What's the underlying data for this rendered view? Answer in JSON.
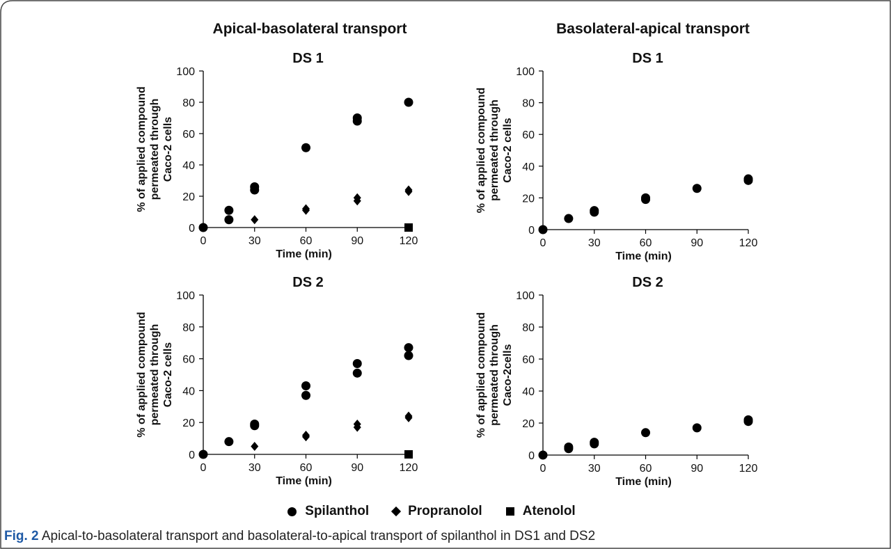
{
  "figure": {
    "column_titles": [
      "Apical-basolateral transport",
      "Basolateral-apical transport"
    ],
    "caption_label": "Fig. 2",
    "caption_text": "Apical-to-basolateral transport and basolateral-to-apical transport of spilanthol in DS1 and DS2"
  },
  "legend": [
    {
      "name": "Spilanthol",
      "symbol": "circle"
    },
    {
      "name": "Propranolol",
      "symbol": "diamond"
    },
    {
      "name": "Atenolol",
      "symbol": "square"
    }
  ],
  "colors": {
    "marker": "#000000",
    "axis": "#000000",
    "caption_label": "#1f5aa6",
    "frame": "#444444"
  },
  "chart_data": [
    {
      "type": "scatter",
      "title": "DS 1",
      "xlabel": "Time (min)",
      "ylabel_lines": [
        "% of applied compound",
        "permeated through",
        "Caco-2 cells"
      ],
      "xlim": [
        0,
        120
      ],
      "ylim": [
        0,
        100
      ],
      "xticks": [
        0,
        30,
        60,
        90,
        120
      ],
      "yticks": [
        0,
        20,
        40,
        60,
        80,
        100
      ],
      "grid": false,
      "series": [
        {
          "name": "Spilanthol",
          "symbol": "circle",
          "points": [
            [
              0,
              0
            ],
            [
              15,
              11
            ],
            [
              15,
              5
            ],
            [
              30,
              26
            ],
            [
              30,
              24
            ],
            [
              60,
              51
            ],
            [
              90,
              70
            ],
            [
              90,
              68
            ],
            [
              120,
              80
            ]
          ]
        },
        {
          "name": "Propranolol",
          "symbol": "diamond",
          "points": [
            [
              30,
              5
            ],
            [
              60,
              12
            ],
            [
              60,
              11
            ],
            [
              90,
              19
            ],
            [
              90,
              17
            ],
            [
              120,
              24
            ],
            [
              120,
              23
            ]
          ]
        },
        {
          "name": "Atenolol",
          "symbol": "square",
          "points": [
            [
              120,
              0
            ]
          ]
        }
      ]
    },
    {
      "type": "scatter",
      "title": "DS 1",
      "xlabel": "Time (min)",
      "ylabel_lines": [
        "% of applied compound",
        "permeated through",
        "Caco-2 cells"
      ],
      "xlim": [
        0,
        120
      ],
      "ylim": [
        0,
        100
      ],
      "xticks": [
        0,
        30,
        60,
        90,
        120
      ],
      "yticks": [
        0,
        20,
        40,
        60,
        80,
        100
      ],
      "grid": false,
      "series": [
        {
          "name": "Spilanthol",
          "symbol": "circle",
          "points": [
            [
              0,
              0
            ],
            [
              15,
              7
            ],
            [
              30,
              12
            ],
            [
              30,
              11
            ],
            [
              60,
              20
            ],
            [
              60,
              19
            ],
            [
              90,
              26
            ],
            [
              120,
              32
            ],
            [
              120,
              31
            ]
          ]
        }
      ]
    },
    {
      "type": "scatter",
      "title": "DS 2",
      "xlabel": "Time (min)",
      "ylabel_lines": [
        "% of applied compound",
        "permeated through",
        "Caco-2 cells"
      ],
      "xlim": [
        0,
        120
      ],
      "ylim": [
        0,
        100
      ],
      "xticks": [
        0,
        30,
        60,
        90,
        120
      ],
      "yticks": [
        0,
        20,
        40,
        60,
        80,
        100
      ],
      "grid": false,
      "series": [
        {
          "name": "Spilanthol",
          "symbol": "circle",
          "points": [
            [
              0,
              0
            ],
            [
              15,
              8
            ],
            [
              30,
              19
            ],
            [
              30,
              18
            ],
            [
              60,
              43
            ],
            [
              60,
              37
            ],
            [
              90,
              57
            ],
            [
              90,
              51
            ],
            [
              120,
              67
            ],
            [
              120,
              62
            ]
          ]
        },
        {
          "name": "Propranolol",
          "symbol": "diamond",
          "points": [
            [
              30,
              5
            ],
            [
              60,
              12
            ],
            [
              60,
              11
            ],
            [
              90,
              19
            ],
            [
              90,
              17
            ],
            [
              120,
              24
            ],
            [
              120,
              23
            ]
          ]
        },
        {
          "name": "Atenolol",
          "symbol": "square",
          "points": [
            [
              120,
              0
            ]
          ]
        }
      ]
    },
    {
      "type": "scatter",
      "title": "DS 2",
      "xlabel": "Time (min)",
      "ylabel_lines": [
        "% of applied compound",
        "permeated through",
        "Caco-2cells"
      ],
      "xlim": [
        0,
        120
      ],
      "ylim": [
        0,
        100
      ],
      "xticks": [
        0,
        30,
        60,
        90,
        120
      ],
      "yticks": [
        0,
        20,
        40,
        60,
        80,
        100
      ],
      "grid": false,
      "series": [
        {
          "name": "Spilanthol",
          "symbol": "circle",
          "points": [
            [
              0,
              0
            ],
            [
              15,
              5
            ],
            [
              15,
              4
            ],
            [
              30,
              8
            ],
            [
              30,
              7
            ],
            [
              60,
              14
            ],
            [
              90,
              17
            ],
            [
              120,
              22
            ],
            [
              120,
              21
            ]
          ]
        }
      ]
    }
  ]
}
